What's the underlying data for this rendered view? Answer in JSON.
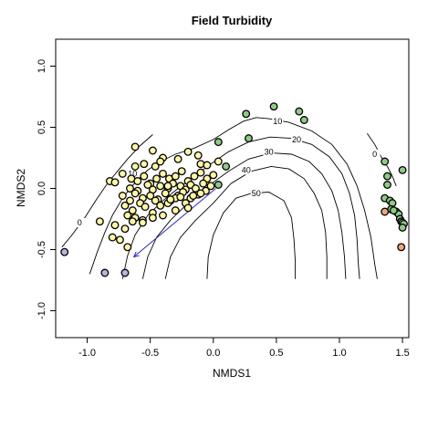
{
  "chart_data": {
    "type": "scatter",
    "title": "Field Turbidity",
    "xlabel": "NMDS1",
    "ylabel": "NMDS2",
    "xlim": [
      -1.25,
      1.55
    ],
    "ylim": [
      -1.22,
      1.22
    ],
    "x_ticks": [
      -1.0,
      -0.5,
      0.0,
      0.5,
      1.0,
      1.5
    ],
    "x_tick_labels": [
      "-1.0",
      "-0.5",
      "0.0",
      "0.5",
      "1.0",
      "1.5"
    ],
    "y_ticks": [
      -1.0,
      -0.5,
      0.0,
      0.5,
      1.0
    ],
    "y_tick_labels": [
      "-1.0",
      "-0.5",
      "0.0",
      "0.5",
      "1.0"
    ],
    "grid": false,
    "legend": "none",
    "colors": {
      "yellow": "#fff7a8",
      "green": "#8fca86",
      "purple": "#b5b5dd",
      "orange": "#f4a578",
      "point_border": "#000000",
      "contour": "#000000",
      "vector": "#2a2ab8"
    },
    "vector": {
      "x0": 0.02,
      "y0": 0.0,
      "x1": -0.63,
      "y1": -0.56
    },
    "contour_levels": [
      "0",
      "10",
      "20",
      "30",
      "40",
      "50"
    ],
    "contours": [
      {
        "level": "0",
        "labels": [
          {
            "text": "0",
            "x": -1.06,
            "y": -0.28
          },
          {
            "text": "0",
            "x": 1.28,
            "y": 0.28
          }
        ],
        "paths": [
          [
            [
              -1.2,
              -0.48
            ],
            [
              -1.12,
              -0.38
            ],
            [
              -1.02,
              -0.24
            ],
            [
              -0.92,
              -0.08
            ],
            [
              -0.84,
              0.04
            ],
            [
              -0.76,
              0.14
            ],
            [
              -0.68,
              0.24
            ],
            [
              -0.58,
              0.35
            ],
            [
              -0.48,
              0.44
            ]
          ],
          [
            [
              1.22,
              0.45
            ],
            [
              1.28,
              0.36
            ],
            [
              1.33,
              0.26
            ],
            [
              1.38,
              0.18
            ],
            [
              1.42,
              0.1
            ],
            [
              1.45,
              0.02
            ]
          ]
        ]
      },
      {
        "level": "10",
        "labels": [
          {
            "text": "10",
            "x": 0.51,
            "y": 0.55
          },
          {
            "text": "10",
            "x": -0.64,
            "y": 0.12
          }
        ],
        "paths": [
          [
            [
              -0.98,
              -0.7
            ],
            [
              -0.92,
              -0.52
            ],
            [
              -0.86,
              -0.36
            ],
            [
              -0.8,
              -0.22
            ],
            [
              -0.72,
              -0.08
            ],
            [
              -0.62,
              0.05
            ],
            [
              -0.52,
              0.15
            ],
            [
              -0.42,
              0.22
            ],
            [
              -0.3,
              0.28
            ],
            [
              -0.15,
              0.33
            ],
            [
              0.0,
              0.4
            ],
            [
              0.12,
              0.48
            ],
            [
              0.24,
              0.55
            ],
            [
              0.34,
              0.58
            ],
            [
              0.44,
              0.57
            ],
            [
              0.6,
              0.54
            ],
            [
              0.78,
              0.47
            ],
            [
              0.94,
              0.36
            ],
            [
              1.06,
              0.2
            ],
            [
              1.14,
              0.02
            ],
            [
              1.2,
              -0.18
            ],
            [
              1.25,
              -0.4
            ],
            [
              1.28,
              -0.62
            ],
            [
              1.3,
              -0.74
            ]
          ]
        ]
      },
      {
        "level": "20",
        "labels": [
          {
            "text": "20",
            "x": 0.66,
            "y": 0.4
          }
        ],
        "paths": [
          [
            [
              -0.72,
              -0.74
            ],
            [
              -0.68,
              -0.55
            ],
            [
              -0.62,
              -0.38
            ],
            [
              -0.52,
              -0.22
            ],
            [
              -0.4,
              -0.1
            ],
            [
              -0.28,
              0.0
            ],
            [
              -0.15,
              0.1
            ],
            [
              -0.02,
              0.2
            ],
            [
              0.12,
              0.3
            ],
            [
              0.28,
              0.38
            ],
            [
              0.45,
              0.42
            ],
            [
              0.62,
              0.41
            ],
            [
              0.78,
              0.36
            ],
            [
              0.92,
              0.26
            ],
            [
              1.02,
              0.12
            ],
            [
              1.08,
              -0.04
            ],
            [
              1.12,
              -0.22
            ],
            [
              1.14,
              -0.42
            ],
            [
              1.15,
              -0.62
            ],
            [
              1.16,
              -0.74
            ]
          ]
        ]
      },
      {
        "level": "30",
        "labels": [
          {
            "text": "30",
            "x": 0.44,
            "y": 0.3
          }
        ],
        "paths": [
          [
            [
              -0.56,
              -0.74
            ],
            [
              -0.52,
              -0.56
            ],
            [
              -0.45,
              -0.4
            ],
            [
              -0.34,
              -0.26
            ],
            [
              -0.2,
              -0.12
            ],
            [
              -0.04,
              0.02
            ],
            [
              0.12,
              0.14
            ],
            [
              0.28,
              0.24
            ],
            [
              0.46,
              0.29
            ],
            [
              0.62,
              0.28
            ],
            [
              0.76,
              0.22
            ],
            [
              0.86,
              0.12
            ],
            [
              0.94,
              -0.02
            ],
            [
              0.99,
              -0.18
            ],
            [
              1.02,
              -0.36
            ],
            [
              1.04,
              -0.56
            ],
            [
              1.05,
              -0.74
            ]
          ]
        ]
      },
      {
        "level": "40",
        "labels": [
          {
            "text": "40",
            "x": 0.26,
            "y": 0.15
          }
        ],
        "paths": [
          [
            [
              -0.38,
              -0.74
            ],
            [
              -0.34,
              -0.56
            ],
            [
              -0.26,
              -0.4
            ],
            [
              -0.14,
              -0.26
            ],
            [
              0.0,
              -0.12
            ],
            [
              0.14,
              0.04
            ],
            [
              0.3,
              0.14
            ],
            [
              0.46,
              0.18
            ],
            [
              0.6,
              0.16
            ],
            [
              0.72,
              0.08
            ],
            [
              0.8,
              -0.04
            ],
            [
              0.86,
              -0.18
            ],
            [
              0.89,
              -0.36
            ],
            [
              0.9,
              -0.56
            ],
            [
              0.9,
              -0.74
            ]
          ]
        ]
      },
      {
        "level": "50",
        "labels": [
          {
            "text": "50",
            "x": 0.34,
            "y": -0.04
          }
        ],
        "paths": [
          [
            [
              -0.05,
              -0.74
            ],
            [
              -0.04,
              -0.56
            ],
            [
              0.0,
              -0.38
            ],
            [
              0.08,
              -0.2
            ],
            [
              0.18,
              -0.08
            ],
            [
              0.3,
              -0.04
            ],
            [
              0.44,
              -0.03
            ],
            [
              0.56,
              -0.1
            ],
            [
              0.62,
              -0.24
            ],
            [
              0.64,
              -0.42
            ],
            [
              0.65,
              -0.6
            ],
            [
              0.65,
              -0.74
            ]
          ]
        ]
      }
    ],
    "series": [
      {
        "color_key": "yellow",
        "x": [
          -0.62,
          -0.48,
          -0.4,
          -0.62,
          -0.55,
          -0.46,
          -0.42,
          -0.28,
          -0.2,
          -0.12,
          -0.1,
          -0.05,
          0.04,
          -0.82,
          -0.78,
          -0.72,
          -0.65,
          -0.6,
          -0.55,
          -0.5,
          -0.45,
          -0.4,
          -0.35,
          -0.3,
          -0.25,
          -0.2,
          -0.15,
          -0.1,
          -0.05,
          0.0,
          -0.66,
          -0.6,
          -0.52,
          -0.48,
          -0.42,
          -0.36,
          -0.32,
          -0.26,
          -0.22,
          -0.18,
          -0.14,
          -0.08,
          -0.02,
          -0.72,
          -0.66,
          -0.62,
          -0.56,
          -0.5,
          -0.44,
          -0.38,
          -0.34,
          -0.28,
          -0.24,
          -0.18,
          -0.12,
          -0.06,
          -0.7,
          -0.64,
          -0.58,
          -0.54,
          -0.46,
          -0.42,
          -0.36,
          -0.3,
          -0.22,
          -0.16,
          -0.1,
          -0.68,
          -0.62,
          -0.56,
          -0.48,
          -0.4,
          -0.3,
          -0.2,
          -0.9,
          -0.78,
          -0.7,
          -0.64,
          -0.56,
          -0.48,
          -0.74,
          -0.8,
          -0.68,
          -0.26,
          -0.34,
          -0.36
        ],
        "y": [
          0.34,
          0.31,
          0.25,
          0.18,
          0.2,
          0.18,
          0.22,
          0.24,
          0.3,
          0.27,
          0.2,
          0.19,
          0.22,
          0.06,
          0.05,
          0.12,
          0.08,
          0.06,
          0.1,
          0.04,
          0.08,
          0.12,
          0.08,
          0.1,
          0.14,
          0.06,
          0.1,
          0.13,
          0.08,
          0.11,
          0.0,
          -0.02,
          0.03,
          -0.01,
          0.02,
          0.0,
          0.04,
          0.02,
          -0.01,
          0.03,
          0.0,
          0.04,
          0.02,
          -0.06,
          -0.1,
          -0.04,
          -0.08,
          -0.06,
          -0.09,
          -0.04,
          -0.1,
          -0.06,
          -0.03,
          -0.08,
          -0.05,
          -0.02,
          -0.14,
          -0.18,
          -0.12,
          -0.15,
          -0.1,
          -0.14,
          -0.12,
          -0.08,
          -0.12,
          -0.06,
          -0.04,
          -0.22,
          -0.24,
          -0.26,
          -0.2,
          -0.22,
          -0.18,
          -0.16,
          -0.27,
          -0.3,
          -0.33,
          -0.27,
          -0.28,
          -0.24,
          -0.42,
          -0.4,
          -0.48,
          -0.07,
          -0.09,
          0.02
        ]
      },
      {
        "color_key": "green",
        "x": [
          0.48,
          0.68,
          0.26,
          0.72,
          0.04,
          0.28,
          0.1,
          0.04,
          1.36,
          1.38,
          1.5,
          1.38,
          1.36,
          1.4,
          1.42,
          1.41,
          1.45,
          1.47,
          1.48,
          1.49,
          1.5,
          1.51,
          1.5,
          1.43
        ],
        "y": [
          0.67,
          0.63,
          0.61,
          0.56,
          0.38,
          0.41,
          0.18,
          0.03,
          0.22,
          0.1,
          0.15,
          0.03,
          -0.08,
          -0.1,
          -0.12,
          -0.17,
          -0.19,
          -0.21,
          -0.25,
          -0.27,
          -0.28,
          -0.29,
          -0.32,
          -0.18
        ]
      },
      {
        "color_key": "purple",
        "x": [
          -1.18,
          -0.86,
          -0.7
        ],
        "y": [
          -0.52,
          -0.69,
          -0.69
        ]
      },
      {
        "color_key": "orange",
        "x": [
          1.36,
          1.49
        ],
        "y": [
          -0.19,
          -0.48
        ]
      }
    ]
  }
}
